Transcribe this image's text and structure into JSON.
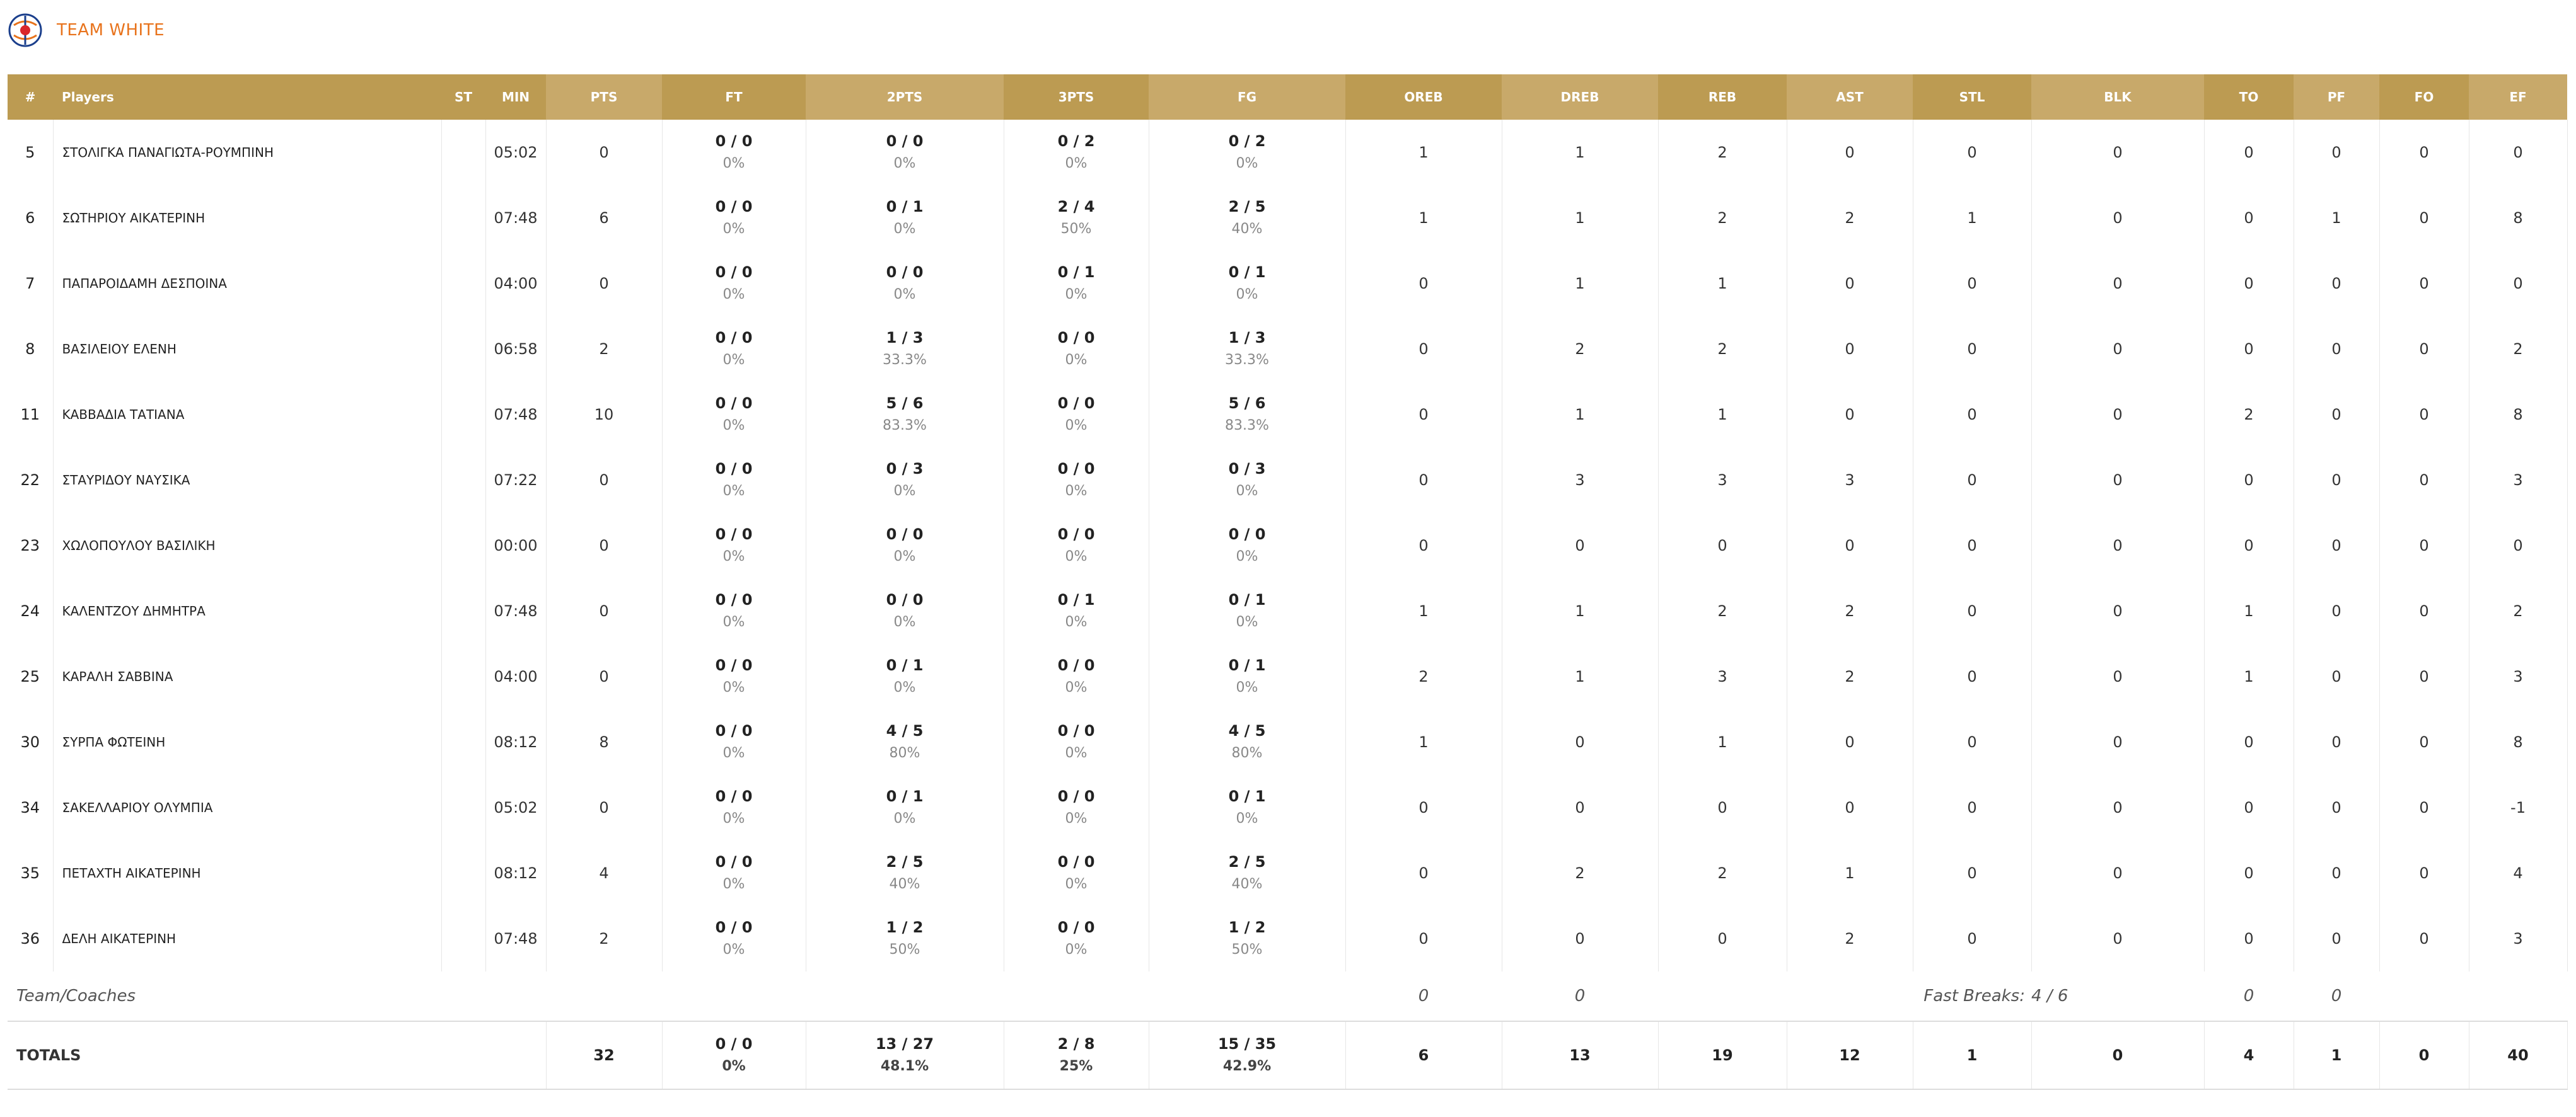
{
  "team": {
    "name": "TEAM WHITE"
  },
  "columns": [
    "#",
    "Players",
    "ST",
    "MIN",
    "PTS",
    "FT",
    "2PTS",
    "3PTS",
    "FG",
    "OREB",
    "DREB",
    "REB",
    "AST",
    "STL",
    "BLK",
    "TO",
    "PF",
    "FO",
    "EF"
  ],
  "players": [
    {
      "no": "5",
      "name": "ΣΤΟΛΙΓΚΑ ΠΑΝΑΓΙΩΤΑ-ΡΟΥΜΠΙΝΗ",
      "st": "",
      "min": "05:02",
      "pts": "0",
      "ft": "0 / 0",
      "ft_pct": "0%",
      "p2": "0 / 0",
      "p2_pct": "0%",
      "p3": "0 / 2",
      "p3_pct": "0%",
      "fg": "0 / 2",
      "fg_pct": "0%",
      "oreb": "1",
      "dreb": "1",
      "reb": "2",
      "ast": "0",
      "stl": "0",
      "blk": "0",
      "to": "0",
      "pf": "0",
      "fo": "0",
      "ef": "0"
    },
    {
      "no": "6",
      "name": "ΣΩΤΗΡΙΟΥ ΑΙΚΑΤΕΡΙΝΗ",
      "st": "",
      "min": "07:48",
      "pts": "6",
      "ft": "0 / 0",
      "ft_pct": "0%",
      "p2": "0 / 1",
      "p2_pct": "0%",
      "p3": "2 / 4",
      "p3_pct": "50%",
      "fg": "2 / 5",
      "fg_pct": "40%",
      "oreb": "1",
      "dreb": "1",
      "reb": "2",
      "ast": "2",
      "stl": "1",
      "blk": "0",
      "to": "0",
      "pf": "1",
      "fo": "0",
      "ef": "8"
    },
    {
      "no": "7",
      "name": "ΠΑΠΑΡΟΙΔΑΜΗ ΔΕΣΠΟΙΝΑ",
      "st": "",
      "min": "04:00",
      "pts": "0",
      "ft": "0 / 0",
      "ft_pct": "0%",
      "p2": "0 / 0",
      "p2_pct": "0%",
      "p3": "0 / 1",
      "p3_pct": "0%",
      "fg": "0 / 1",
      "fg_pct": "0%",
      "oreb": "0",
      "dreb": "1",
      "reb": "1",
      "ast": "0",
      "stl": "0",
      "blk": "0",
      "to": "0",
      "pf": "0",
      "fo": "0",
      "ef": "0"
    },
    {
      "no": "8",
      "name": "ΒΑΣΙΛΕΙΟΥ ΕΛΕΝΗ",
      "st": "",
      "min": "06:58",
      "pts": "2",
      "ft": "0 / 0",
      "ft_pct": "0%",
      "p2": "1 / 3",
      "p2_pct": "33.3%",
      "p3": "0 / 0",
      "p3_pct": "0%",
      "fg": "1 / 3",
      "fg_pct": "33.3%",
      "oreb": "0",
      "dreb": "2",
      "reb": "2",
      "ast": "0",
      "stl": "0",
      "blk": "0",
      "to": "0",
      "pf": "0",
      "fo": "0",
      "ef": "2"
    },
    {
      "no": "11",
      "name": "ΚΑΒΒΑΔΙΑ ΤΑΤΙΑΝΑ",
      "st": "",
      "min": "07:48",
      "pts": "10",
      "ft": "0 / 0",
      "ft_pct": "0%",
      "p2": "5 / 6",
      "p2_pct": "83.3%",
      "p3": "0 / 0",
      "p3_pct": "0%",
      "fg": "5 / 6",
      "fg_pct": "83.3%",
      "oreb": "0",
      "dreb": "1",
      "reb": "1",
      "ast": "0",
      "stl": "0",
      "blk": "0",
      "to": "2",
      "pf": "0",
      "fo": "0",
      "ef": "8"
    },
    {
      "no": "22",
      "name": "ΣΤΑΥΡΙΔΟΥ ΝΑΥΣΙΚΑ",
      "st": "",
      "min": "07:22",
      "pts": "0",
      "ft": "0 / 0",
      "ft_pct": "0%",
      "p2": "0 / 3",
      "p2_pct": "0%",
      "p3": "0 / 0",
      "p3_pct": "0%",
      "fg": "0 / 3",
      "fg_pct": "0%",
      "oreb": "0",
      "dreb": "3",
      "reb": "3",
      "ast": "3",
      "stl": "0",
      "blk": "0",
      "to": "0",
      "pf": "0",
      "fo": "0",
      "ef": "3"
    },
    {
      "no": "23",
      "name": "ΧΩΛΟΠΟΥΛΟΥ ΒΑΣΙΛΙΚΗ",
      "st": "",
      "min": "00:00",
      "pts": "0",
      "ft": "0 / 0",
      "ft_pct": "0%",
      "p2": "0 / 0",
      "p2_pct": "0%",
      "p3": "0 / 0",
      "p3_pct": "0%",
      "fg": "0 / 0",
      "fg_pct": "0%",
      "oreb": "0",
      "dreb": "0",
      "reb": "0",
      "ast": "0",
      "stl": "0",
      "blk": "0",
      "to": "0",
      "pf": "0",
      "fo": "0",
      "ef": "0"
    },
    {
      "no": "24",
      "name": "ΚΑΛΕΝΤΖΟΥ ΔΗΜΗΤΡΑ",
      "st": "",
      "min": "07:48",
      "pts": "0",
      "ft": "0 / 0",
      "ft_pct": "0%",
      "p2": "0 / 0",
      "p2_pct": "0%",
      "p3": "0 / 1",
      "p3_pct": "0%",
      "fg": "0 / 1",
      "fg_pct": "0%",
      "oreb": "1",
      "dreb": "1",
      "reb": "2",
      "ast": "2",
      "stl": "0",
      "blk": "0",
      "to": "1",
      "pf": "0",
      "fo": "0",
      "ef": "2"
    },
    {
      "no": "25",
      "name": "ΚΑΡΑΛΗ ΣΑΒΒΙΝΑ",
      "st": "",
      "min": "04:00",
      "pts": "0",
      "ft": "0 / 0",
      "ft_pct": "0%",
      "p2": "0 / 1",
      "p2_pct": "0%",
      "p3": "0 / 0",
      "p3_pct": "0%",
      "fg": "0 / 1",
      "fg_pct": "0%",
      "oreb": "2",
      "dreb": "1",
      "reb": "3",
      "ast": "2",
      "stl": "0",
      "blk": "0",
      "to": "1",
      "pf": "0",
      "fo": "0",
      "ef": "3"
    },
    {
      "no": "30",
      "name": "ΣΥΡΠΑ ΦΩΤΕΙΝΗ",
      "st": "",
      "min": "08:12",
      "pts": "8",
      "ft": "0 / 0",
      "ft_pct": "0%",
      "p2": "4 / 5",
      "p2_pct": "80%",
      "p3": "0 / 0",
      "p3_pct": "0%",
      "fg": "4 / 5",
      "fg_pct": "80%",
      "oreb": "1",
      "dreb": "0",
      "reb": "1",
      "ast": "0",
      "stl": "0",
      "blk": "0",
      "to": "0",
      "pf": "0",
      "fo": "0",
      "ef": "8"
    },
    {
      "no": "34",
      "name": "ΣΑΚΕΛΛΑΡΙΟΥ ΟΛΥΜΠΙΑ",
      "st": "",
      "min": "05:02",
      "pts": "0",
      "ft": "0 / 0",
      "ft_pct": "0%",
      "p2": "0 / 1",
      "p2_pct": "0%",
      "p3": "0 / 0",
      "p3_pct": "0%",
      "fg": "0 / 1",
      "fg_pct": "0%",
      "oreb": "0",
      "dreb": "0",
      "reb": "0",
      "ast": "0",
      "stl": "0",
      "blk": "0",
      "to": "0",
      "pf": "0",
      "fo": "0",
      "ef": "-1"
    },
    {
      "no": "35",
      "name": "ΠΕΤΑΧΤΗ ΑΙΚΑΤΕΡΙΝΗ",
      "st": "",
      "min": "08:12",
      "pts": "4",
      "ft": "0 / 0",
      "ft_pct": "0%",
      "p2": "2 / 5",
      "p2_pct": "40%",
      "p3": "0 / 0",
      "p3_pct": "0%",
      "fg": "2 / 5",
      "fg_pct": "40%",
      "oreb": "0",
      "dreb": "2",
      "reb": "2",
      "ast": "1",
      "stl": "0",
      "blk": "0",
      "to": "0",
      "pf": "0",
      "fo": "0",
      "ef": "4"
    },
    {
      "no": "36",
      "name": "ΔΕΛΗ ΑΙΚΑΤΕΡΙΝΗ",
      "st": "",
      "min": "07:48",
      "pts": "2",
      "ft": "0 / 0",
      "ft_pct": "0%",
      "p2": "1 / 2",
      "p2_pct": "50%",
      "p3": "0 / 0",
      "p3_pct": "0%",
      "fg": "1 / 2",
      "fg_pct": "50%",
      "oreb": "0",
      "dreb": "0",
      "reb": "0",
      "ast": "2",
      "stl": "0",
      "blk": "0",
      "to": "0",
      "pf": "0",
      "fo": "0",
      "ef": "3"
    }
  ],
  "coaches": {
    "label": "Team/Coaches",
    "oreb": "0",
    "dreb": "0",
    "fast_breaks_label": "Fast Breaks:",
    "fast_breaks": "4 / 6",
    "to": "0",
    "pf": "0"
  },
  "totals": {
    "label": "TOTALS",
    "pts": "32",
    "ft": "0 / 0",
    "ft_pct": "0%",
    "p2": "13 / 27",
    "p2_pct": "48.1%",
    "p3": "2 / 8",
    "p3_pct": "25%",
    "fg": "15 / 35",
    "fg_pct": "42.9%",
    "oreb": "6",
    "dreb": "13",
    "reb": "19",
    "ast": "12",
    "stl": "1",
    "blk": "0",
    "to": "4",
    "pf": "1",
    "fo": "0",
    "ef": "40"
  }
}
